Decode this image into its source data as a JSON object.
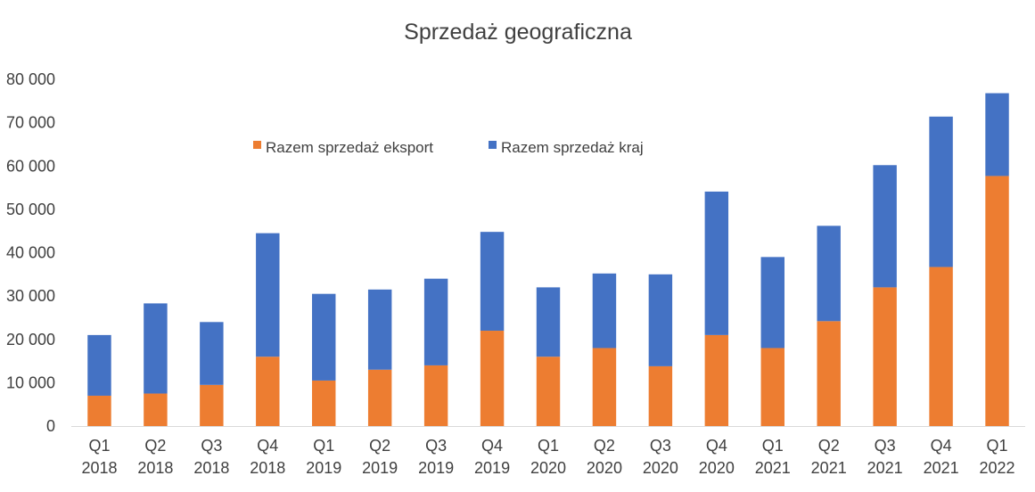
{
  "chart_data": {
    "type": "bar",
    "stacked": true,
    "title": "Sprzedaż geograficzna",
    "xlabel": "",
    "ylabel": "",
    "ylim": [
      0,
      80000
    ],
    "yticks": [
      0,
      10000,
      20000,
      30000,
      40000,
      50000,
      60000,
      70000,
      80000
    ],
    "ytick_labels": [
      "0",
      "10 000",
      "20 000",
      "30 000",
      "40 000",
      "50 000",
      "60 000",
      "70 000",
      "80 000"
    ],
    "grid": false,
    "legend_position": "top-center",
    "categories": [
      [
        "Q1",
        "2018"
      ],
      [
        "Q2",
        "2018"
      ],
      [
        "Q3",
        "2018"
      ],
      [
        "Q4",
        "2018"
      ],
      [
        "Q1",
        "2019"
      ],
      [
        "Q2",
        "2019"
      ],
      [
        "Q3",
        "2019"
      ],
      [
        "Q4",
        "2019"
      ],
      [
        "Q1",
        "2020"
      ],
      [
        "Q2",
        "2020"
      ],
      [
        "Q3",
        "2020"
      ],
      [
        "Q4",
        "2020"
      ],
      [
        "Q1",
        "2021"
      ],
      [
        "Q2",
        "2021"
      ],
      [
        "Q3",
        "2021"
      ],
      [
        "Q4",
        "2021"
      ],
      [
        "Q1",
        "2022"
      ]
    ],
    "series": [
      {
        "name": "Razem sprzedaż eksport",
        "color": "#ED7D31",
        "values": [
          7000,
          7500,
          9500,
          16000,
          10500,
          13000,
          14000,
          22000,
          16000,
          18000,
          13800,
          21000,
          18000,
          24200,
          32000,
          36700,
          57700
        ]
      },
      {
        "name": "Razem sprzedaż kraj",
        "color": "#4472C4",
        "values": [
          14000,
          20800,
          14500,
          28500,
          20000,
          18500,
          20000,
          22800,
          16000,
          17200,
          21200,
          33100,
          21000,
          22000,
          28200,
          34700,
          19100
        ]
      }
    ]
  }
}
